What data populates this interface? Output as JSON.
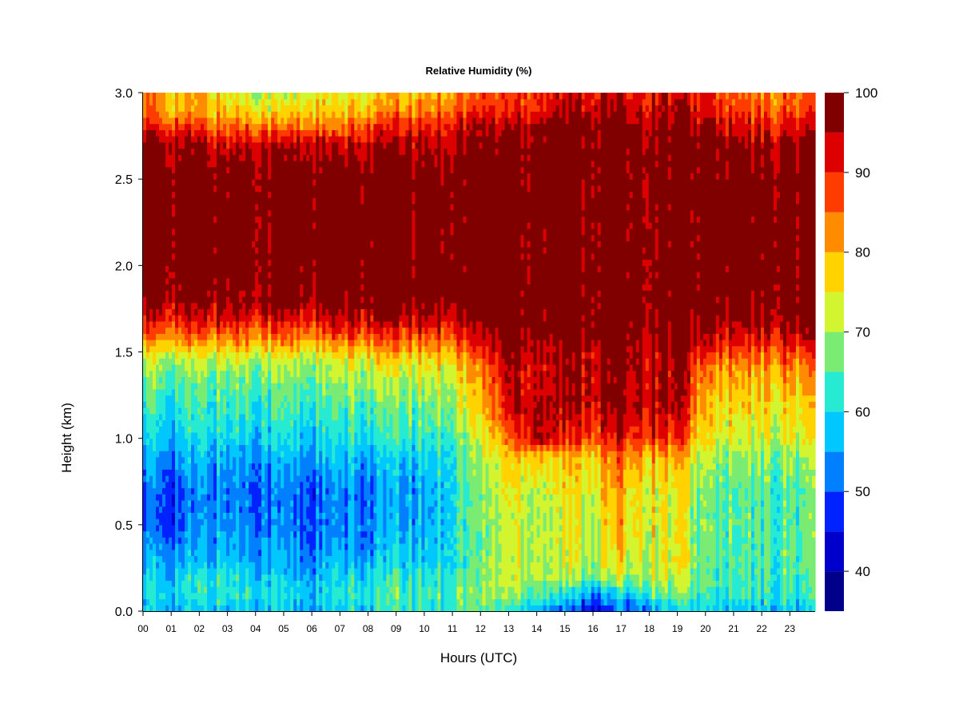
{
  "chart_data": {
    "type": "heatmap",
    "title": "Relative Humidity (%)",
    "xlabel": "Hours (UTC)",
    "ylabel": "Height (km)",
    "x_range": [
      0,
      23.9
    ],
    "y_range": [
      0.0,
      3.0
    ],
    "x_ticks": [
      "00",
      "01",
      "02",
      "03",
      "04",
      "05",
      "06",
      "07",
      "08",
      "09",
      "10",
      "11",
      "12",
      "13",
      "14",
      "15",
      "16",
      "17",
      "18",
      "19",
      "20",
      "21",
      "22",
      "23"
    ],
    "y_ticks": [
      "0.0",
      "0.5",
      "1.0",
      "1.5",
      "2.0",
      "2.5",
      "3.0"
    ],
    "y_tick_values": [
      0.0,
      0.5,
      1.0,
      1.5,
      2.0,
      2.5,
      3.0
    ],
    "colorbar": {
      "levels": [
        35,
        40,
        45,
        50,
        55,
        60,
        65,
        70,
        75,
        80,
        85,
        90,
        95,
        100
      ],
      "tick_labels": [
        "40",
        "50",
        "60",
        "70",
        "80",
        "90",
        "100"
      ],
      "tick_values": [
        40,
        50,
        60,
        70,
        80,
        90,
        100
      ],
      "colors": [
        "#00008b",
        "#0000cd",
        "#0022ff",
        "#0080ff",
        "#00c8ff",
        "#26ebd2",
        "#7aeb73",
        "#d2f530",
        "#ffd200",
        "#ff8c00",
        "#ff3c00",
        "#dc0000",
        "#800000"
      ]
    },
    "profile_hours": [
      0,
      1,
      2,
      3,
      4,
      5,
      6,
      7,
      8,
      9,
      10,
      11,
      12,
      13,
      14,
      15,
      16,
      17,
      18,
      19,
      20,
      21,
      22,
      23,
      23.9
    ],
    "profile_heights_km": [
      0.0,
      0.1,
      0.2,
      0.3,
      0.5,
      0.7,
      0.9,
      1.0,
      1.2,
      1.4,
      1.5,
      1.6,
      1.7,
      1.8,
      2.0,
      2.3,
      2.5,
      2.7,
      2.8,
      2.9,
      3.0
    ],
    "rh_profiles": [
      [
        57,
        60,
        57,
        55,
        50,
        50,
        55,
        58,
        62,
        68,
        75,
        85,
        92,
        97,
        100,
        100,
        100,
        97,
        90,
        85,
        85
      ],
      [
        57,
        60,
        58,
        55,
        50,
        50,
        55,
        58,
        62,
        68,
        75,
        85,
        92,
        97,
        100,
        100,
        100,
        97,
        90,
        80,
        80
      ],
      [
        57,
        62,
        60,
        55,
        53,
        52,
        56,
        59,
        63,
        68,
        75,
        85,
        92,
        97,
        100,
        100,
        100,
        95,
        88,
        80,
        80
      ],
      [
        58,
        63,
        62,
        58,
        55,
        53,
        57,
        60,
        64,
        69,
        76,
        86,
        93,
        98,
        100,
        100,
        100,
        94,
        85,
        78,
        75
      ],
      [
        58,
        62,
        60,
        57,
        53,
        52,
        56,
        60,
        64,
        69,
        76,
        86,
        93,
        98,
        100,
        100,
        100,
        95,
        87,
        78,
        72
      ],
      [
        58,
        60,
        58,
        55,
        52,
        52,
        56,
        60,
        64,
        69,
        76,
        86,
        93,
        98,
        100,
        100,
        100,
        94,
        84,
        75,
        70
      ],
      [
        55,
        58,
        56,
        53,
        50,
        50,
        55,
        59,
        63,
        68,
        75,
        85,
        92,
        97,
        100,
        100,
        100,
        95,
        86,
        78,
        75
      ],
      [
        58,
        60,
        58,
        55,
        52,
        52,
        56,
        60,
        64,
        69,
        76,
        86,
        93,
        98,
        100,
        100,
        99,
        92,
        82,
        75,
        72
      ],
      [
        60,
        62,
        60,
        56,
        53,
        52,
        57,
        61,
        66,
        72,
        80,
        88,
        95,
        100,
        100,
        100,
        100,
        95,
        88,
        80,
        76
      ],
      [
        62,
        64,
        62,
        58,
        55,
        55,
        58,
        62,
        66,
        72,
        80,
        88,
        95,
        100,
        100,
        100,
        100,
        96,
        90,
        82,
        78
      ],
      [
        62,
        64,
        62,
        58,
        56,
        56,
        59,
        63,
        67,
        73,
        80,
        88,
        95,
        100,
        100,
        100,
        100,
        96,
        90,
        83,
        80
      ],
      [
        64,
        67,
        65,
        62,
        62,
        62,
        63,
        65,
        70,
        76,
        82,
        90,
        96,
        100,
        100,
        100,
        100,
        97,
        92,
        86,
        82
      ],
      [
        65,
        68,
        67,
        66,
        66,
        67,
        70,
        73,
        78,
        82,
        88,
        93,
        98,
        100,
        100,
        100,
        100,
        98,
        95,
        90,
        85
      ],
      [
        62,
        70,
        72,
        72,
        73,
        75,
        78,
        85,
        93,
        95,
        98,
        100,
        100,
        100,
        100,
        100,
        100,
        99,
        95,
        90,
        88
      ],
      [
        58,
        68,
        73,
        72,
        72,
        73,
        80,
        98,
        97,
        94,
        96,
        100,
        100,
        100,
        100,
        100,
        100,
        100,
        98,
        92,
        90
      ],
      [
        50,
        60,
        70,
        72,
        73,
        75,
        78,
        90,
        95,
        96,
        96,
        99,
        100,
        100,
        100,
        100,
        100,
        100,
        100,
        96,
        92
      ],
      [
        43,
        55,
        68,
        72,
        73,
        75,
        79,
        88,
        95,
        96,
        96,
        100,
        100,
        100,
        100,
        100,
        100,
        100,
        100,
        96,
        92
      ],
      [
        48,
        58,
        70,
        75,
        78,
        80,
        85,
        92,
        97,
        98,
        99,
        100,
        100,
        100,
        100,
        100,
        100,
        100,
        99,
        95,
        92
      ],
      [
        55,
        65,
        72,
        74,
        74,
        75,
        80,
        90,
        96,
        96,
        96,
        98,
        100,
        100,
        100,
        100,
        100,
        100,
        99,
        95,
        92
      ],
      [
        57,
        66,
        72,
        74,
        74,
        75,
        80,
        89,
        95,
        95,
        96,
        98,
        100,
        100,
        100,
        100,
        100,
        100,
        99,
        95,
        92
      ],
      [
        58,
        63,
        65,
        66,
        66,
        66,
        70,
        74,
        78,
        84,
        90,
        95,
        99,
        100,
        100,
        100,
        100,
        99,
        96,
        92,
        90
      ],
      [
        57,
        62,
        63,
        64,
        64,
        64,
        68,
        72,
        76,
        80,
        86,
        92,
        96,
        99,
        100,
        100,
        100,
        97,
        92,
        88,
        84
      ],
      [
        56,
        62,
        63,
        64,
        64,
        64,
        68,
        72,
        76,
        80,
        86,
        92,
        96,
        99,
        100,
        100,
        100,
        96,
        90,
        86,
        82
      ],
      [
        57,
        63,
        64,
        65,
        65,
        65,
        69,
        73,
        77,
        82,
        88,
        94,
        98,
        100,
        100,
        100,
        100,
        97,
        92,
        87,
        84
      ],
      [
        58,
        63,
        64,
        66,
        66,
        66,
        70,
        74,
        78,
        83,
        89,
        95,
        99,
        100,
        100,
        100,
        100,
        98,
        93,
        88,
        85
      ]
    ]
  }
}
